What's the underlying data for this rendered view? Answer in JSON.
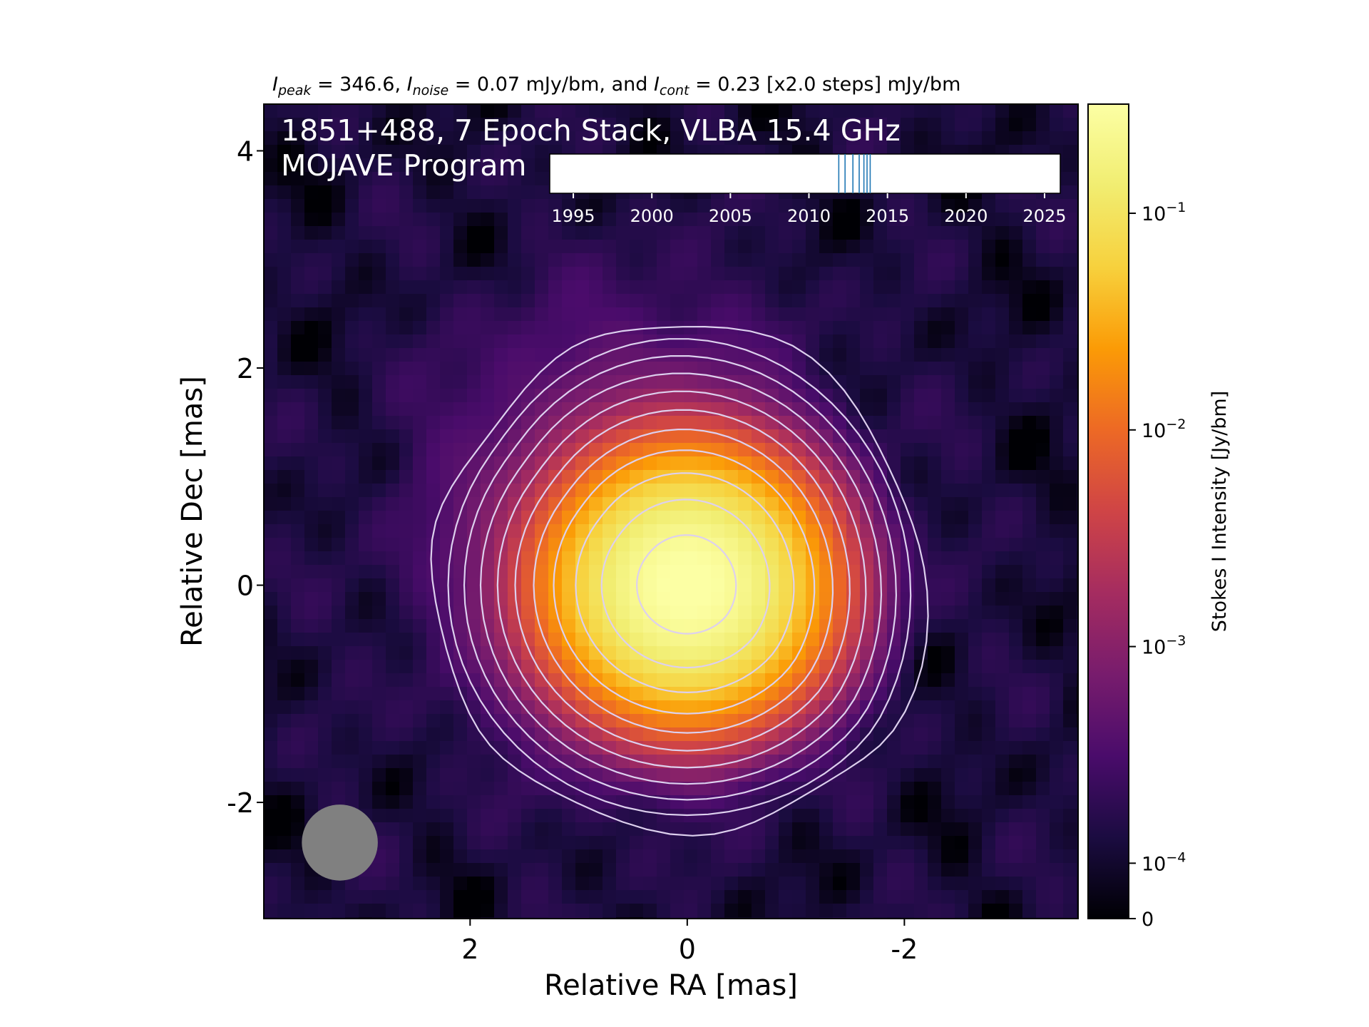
{
  "chart_data": {
    "type": "heatmap",
    "header": {
      "peak_sym": "I",
      "peak_sub": "peak",
      "peak_value": " = 346.6, ",
      "noise_sym": "I",
      "noise_sub": "noise",
      "noise_value": " = 0.07 mJy/bm, and ",
      "cont_sym": "I",
      "cont_sub": "cont",
      "cont_value": " = 0.23 [x2.0 steps] mJy/bm"
    },
    "title_line1": "1851+488, 7 Epoch Stack, VLBA 15.4 GHz",
    "title_line2": "MOJAVE Program",
    "xlabel": "Relative RA [mas]",
    "ylabel": "Relative Dec [mas]",
    "xlim": [
      3.9,
      -3.6
    ],
    "ylim": [
      -3.07,
      4.43
    ],
    "x_ticks": [
      2,
      0,
      -2
    ],
    "x_tick_labels": [
      "2",
      "0",
      "-2"
    ],
    "y_ticks": [
      4,
      2,
      0,
      -2
    ],
    "y_tick_labels": [
      "4",
      "2",
      "0",
      "-2"
    ],
    "source": {
      "ra": 0.0,
      "dec": 0.0,
      "peak_jy": 0.3466,
      "sigma_ra": 0.52,
      "sigma_dec": 0.5
    },
    "contour_levels_mjy": [
      0.23,
      0.46,
      0.92,
      1.84,
      3.68,
      7.36,
      14.72,
      29.44,
      58.88,
      117.76,
      235.52
    ],
    "beam": {
      "ra": 3.2,
      "dec": -2.37,
      "radius_mas": 0.35
    },
    "colorbar": {
      "label": "Stokes I Intensity [Jy/bm]",
      "tick_values": [
        0.1,
        0.01,
        0.001,
        0.0001,
        0
      ],
      "tick_bases": [
        "10",
        "10",
        "10",
        "10",
        ""
      ],
      "tick_exps": [
        "−1",
        "−2",
        "−3",
        "−4",
        ""
      ],
      "tick_zero": "0",
      "colormap": "inferno"
    },
    "epoch_timeline": {
      "range": [
        1993.5,
        2026.0
      ],
      "tick_years": [
        1995,
        2000,
        2005,
        2010,
        2015,
        2020,
        2025
      ],
      "tick_labels": [
        "1995",
        "2000",
        "2005",
        "2010",
        "2015",
        "2020",
        "2025"
      ],
      "epochs": [
        2011.9,
        2012.3,
        2012.8,
        2013.2,
        2013.5,
        2013.7,
        2013.9
      ],
      "epoch_color": "#1f77b4"
    },
    "colors": {
      "contour": "#ddd0ee",
      "beam": "#808080",
      "frame": "#000000"
    }
  }
}
